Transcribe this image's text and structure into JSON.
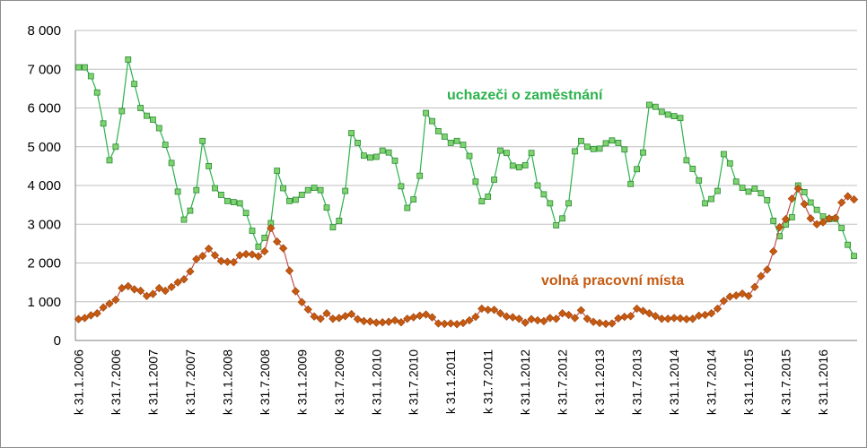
{
  "chart_data": {
    "type": "line",
    "ylim": [
      0,
      8000
    ],
    "y_ticks": [
      0,
      1000,
      2000,
      3000,
      4000,
      5000,
      6000,
      7000,
      8000
    ],
    "y_tick_labels": [
      "0",
      "1 000",
      "2 000",
      "3 000",
      "4 000",
      "5 000",
      "6 000",
      "7 000",
      "8 000"
    ],
    "x_tick_labels": [
      "k 31.1.2006",
      "k 31.7.2006",
      "k 31.1.2007",
      "k 31.7.2007",
      "k 31.1.2008",
      "k 31.7.2008",
      "k 31.1.2009",
      "k 31.7.2009",
      "k 31.1.2010",
      "k 31.7.2010",
      "k 31.1.2011",
      "k 31.7.2011",
      "k 31.1.2012",
      "k 31.7.2012",
      "k 31.1.2013",
      "k 31.7.2013",
      "k 31.1.2014",
      "k 31.7.2014",
      "k 31.1.2015",
      "k 31.7.2015",
      "k 31.1.2016"
    ],
    "grid": "horizontal",
    "series": [
      {
        "name": "uchazeči o zaměstnání",
        "color": "#2bb24c",
        "marker_color": "#7fd36f",
        "values": [
          7050,
          7050,
          6820,
          6400,
          5600,
          4650,
          5000,
          5920,
          7250,
          6620,
          6000,
          5800,
          5700,
          5480,
          5050,
          4580,
          3840,
          3120,
          3350,
          3880,
          5150,
          4500,
          3930,
          3760,
          3600,
          3570,
          3540,
          3290,
          2830,
          2420,
          2650,
          3030,
          4380,
          3930,
          3600,
          3630,
          3760,
          3880,
          3940,
          3880,
          3430,
          2920,
          3090,
          3860,
          5350,
          5100,
          4770,
          4720,
          4740,
          4900,
          4850,
          4640,
          3980,
          3420,
          3640,
          4250,
          5870,
          5660,
          5400,
          5260,
          5100,
          5150,
          5050,
          4760,
          4100,
          3590,
          3710,
          4150,
          4900,
          4840,
          4510,
          4470,
          4520,
          4840,
          4000,
          3770,
          3540,
          2970,
          3150,
          3540,
          4880,
          5150,
          5000,
          4940,
          4950,
          5090,
          5160,
          5100,
          4930,
          4040,
          4420,
          4850,
          6080,
          6030,
          5900,
          5830,
          5790,
          5740,
          4650,
          4430,
          4130,
          3540,
          3650,
          3860,
          4810,
          4570,
          4100,
          3940,
          3840,
          3920,
          3800,
          3620,
          3090,
          2690,
          2990,
          3180,
          4000,
          3830,
          3560,
          3370,
          3200,
          3130,
          3140,
          2900,
          2470,
          2180
        ]
      },
      {
        "name": "volná pracovní místa",
        "color": "#c0504d",
        "marker_color": "#c55a11",
        "values": [
          550,
          580,
          650,
          700,
          850,
          950,
          1050,
          1350,
          1400,
          1320,
          1280,
          1150,
          1200,
          1350,
          1280,
          1380,
          1500,
          1580,
          1780,
          2100,
          2180,
          2370,
          2200,
          2050,
          2030,
          2020,
          2200,
          2230,
          2220,
          2170,
          2300,
          2900,
          2550,
          2380,
          1800,
          1270,
          990,
          800,
          620,
          560,
          700,
          560,
          580,
          630,
          680,
          550,
          500,
          490,
          460,
          470,
          480,
          520,
          470,
          560,
          600,
          640,
          670,
          600,
          440,
          430,
          440,
          420,
          450,
          520,
          610,
          820,
          790,
          790,
          700,
          620,
          600,
          560,
          460,
          550,
          520,
          500,
          580,
          560,
          700,
          660,
          580,
          780,
          560,
          480,
          450,
          430,
          440,
          570,
          610,
          630,
          820,
          760,
          700,
          630,
          560,
          560,
          580,
          570,
          550,
          560,
          640,
          660,
          700,
          820,
          1020,
          1130,
          1160,
          1210,
          1150,
          1380,
          1660,
          1830,
          2300,
          2920,
          3130,
          3660,
          3920,
          3520,
          3150,
          3000,
          3050,
          3150,
          3160,
          3560,
          3720,
          3640
        ]
      }
    ]
  }
}
